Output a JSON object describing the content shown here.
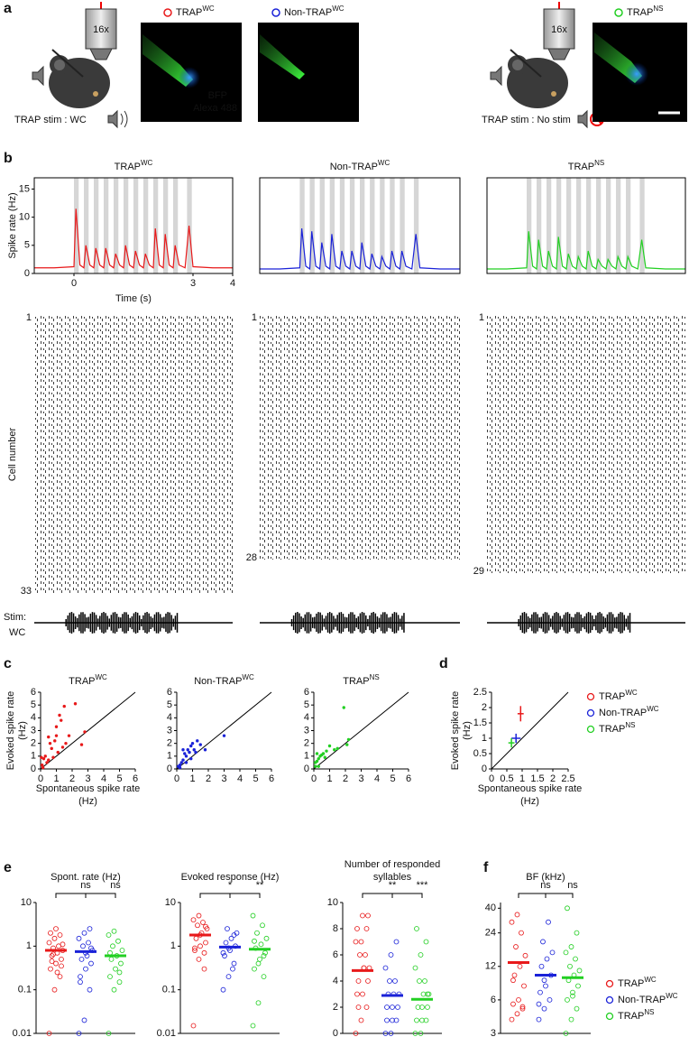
{
  "panel_labels": [
    "a",
    "b",
    "c",
    "d",
    "e",
    "f"
  ],
  "panel_a": {
    "objective_labels": [
      "16x",
      "16x"
    ],
    "conditions": [
      "TRAP stim : WC",
      "TRAP stim : No stim"
    ],
    "stain_labels": [
      "BFP",
      "Alexa 488"
    ],
    "images": [
      {
        "name": "TRAP",
        "sup": "WC",
        "color": "#e8191a"
      },
      {
        "name": "Non-TRAP",
        "sup": "WC",
        "color": "#1a22d8"
      },
      {
        "name": "TRAP",
        "sup": "NS",
        "color": "#22cf22"
      }
    ]
  },
  "stim_label": [
    "Stim:",
    "WC"
  ],
  "chart_data": [
    {
      "type": "line",
      "title": "TRAP",
      "title_sup": "WC",
      "xlabel": "Time (s)",
      "ylabel": "Spike rate (Hz)",
      "x": [
        -1,
        -0.5,
        0,
        0.05,
        0.15,
        0.25,
        0.3,
        0.4,
        0.5,
        0.55,
        0.65,
        0.75,
        0.8,
        0.9,
        1.0,
        1.05,
        1.15,
        1.25,
        1.3,
        1.4,
        1.5,
        1.55,
        1.65,
        1.75,
        1.8,
        1.9,
        2.0,
        2.05,
        2.15,
        2.25,
        2.3,
        2.4,
        2.5,
        2.55,
        2.65,
        2.8,
        2.9,
        3.0,
        3.5,
        4
      ],
      "series": [
        {
          "color": "#e8191a",
          "values": [
            1,
            1,
            1.2,
            11.5,
            1.5,
            1,
            5,
            1.5,
            1,
            4.5,
            1.5,
            1,
            4.5,
            1.5,
            1,
            3.5,
            1.5,
            1,
            5,
            1.5,
            1,
            4,
            1.5,
            1,
            3.5,
            1.5,
            1,
            8,
            1.5,
            1,
            7,
            1.5,
            1,
            5,
            1.5,
            1,
            8.5,
            1.2,
            1,
            1
          ]
        }
      ],
      "stim_bands": [
        [
          0,
          0.12
        ],
        [
          0.25,
          0.37
        ],
        [
          0.5,
          0.62
        ],
        [
          0.75,
          0.87
        ],
        [
          1.0,
          1.12
        ],
        [
          1.25,
          1.37
        ],
        [
          1.5,
          1.62
        ],
        [
          1.75,
          1.87
        ],
        [
          2.0,
          2.12
        ],
        [
          2.25,
          2.37
        ],
        [
          2.5,
          2.62
        ],
        [
          2.85,
          2.97
        ]
      ],
      "xlim": [
        -1,
        4
      ],
      "xticks": [
        0,
        3,
        4
      ],
      "ylim": [
        0,
        17
      ],
      "yticks": [
        0,
        5,
        10,
        15
      ]
    },
    {
      "type": "line",
      "title": "Non-TRAP",
      "title_sup": "WC",
      "x": [
        -1,
        -0.5,
        0,
        0.05,
        0.15,
        0.25,
        0.3,
        0.4,
        0.5,
        0.55,
        0.65,
        0.75,
        0.8,
        0.9,
        1.0,
        1.05,
        1.15,
        1.25,
        1.3,
        1.4,
        1.5,
        1.55,
        1.65,
        1.75,
        1.8,
        1.9,
        2.0,
        2.05,
        2.15,
        2.25,
        2.3,
        2.4,
        2.5,
        2.55,
        2.65,
        2.8,
        2.9,
        3.0,
        3.5,
        4
      ],
      "series": [
        {
          "color": "#1a22d8",
          "values": [
            0.8,
            0.8,
            1,
            8,
            1.3,
            0.8,
            7.5,
            1.3,
            0.8,
            5.5,
            1.3,
            0.8,
            7,
            1.3,
            0.8,
            4,
            1.3,
            0.8,
            4,
            1.3,
            0.8,
            5.5,
            1.3,
            0.8,
            3.5,
            1.3,
            0.8,
            3,
            1.3,
            0.8,
            4,
            1.3,
            0.8,
            4,
            1.3,
            0.8,
            7,
            1,
            0.8,
            0.8
          ]
        }
      ],
      "stim_bands": [
        [
          0,
          0.12
        ],
        [
          0.25,
          0.37
        ],
        [
          0.5,
          0.62
        ],
        [
          0.75,
          0.87
        ],
        [
          1.0,
          1.12
        ],
        [
          1.25,
          1.37
        ],
        [
          1.5,
          1.62
        ],
        [
          1.75,
          1.87
        ],
        [
          2.0,
          2.12
        ],
        [
          2.25,
          2.37
        ],
        [
          2.5,
          2.62
        ],
        [
          2.85,
          2.97
        ]
      ],
      "xlim": [
        -1,
        4
      ],
      "ylim": [
        0,
        17
      ]
    },
    {
      "type": "line",
      "title": "TRAP",
      "title_sup": "NS",
      "x": [
        -1,
        -0.5,
        0,
        0.05,
        0.15,
        0.25,
        0.3,
        0.4,
        0.5,
        0.55,
        0.65,
        0.75,
        0.8,
        0.9,
        1.0,
        1.05,
        1.15,
        1.25,
        1.3,
        1.4,
        1.5,
        1.55,
        1.65,
        1.75,
        1.8,
        1.9,
        2.0,
        2.05,
        2.15,
        2.25,
        2.3,
        2.4,
        2.5,
        2.55,
        2.65,
        2.8,
        2.9,
        3.0,
        3.5,
        4
      ],
      "series": [
        {
          "color": "#22cf22",
          "values": [
            0.8,
            0.8,
            1,
            7.5,
            1.3,
            0.8,
            6,
            1.3,
            0.8,
            4,
            1.3,
            0.8,
            6.5,
            1.3,
            0.8,
            3.5,
            1.3,
            0.8,
            3,
            1.3,
            0.8,
            4,
            1.3,
            0.8,
            2.5,
            1.3,
            0.8,
            2.5,
            1.3,
            0.8,
            3,
            1.3,
            0.8,
            3,
            1.3,
            0.8,
            6,
            1,
            0.8,
            0.8
          ]
        }
      ],
      "stim_bands": [
        [
          0,
          0.12
        ],
        [
          0.25,
          0.37
        ],
        [
          0.5,
          0.62
        ],
        [
          0.75,
          0.87
        ],
        [
          1.0,
          1.12
        ],
        [
          1.25,
          1.37
        ],
        [
          1.5,
          1.62
        ],
        [
          1.75,
          1.87
        ],
        [
          2.0,
          2.12
        ],
        [
          2.25,
          2.37
        ],
        [
          2.5,
          2.62
        ],
        [
          2.85,
          2.97
        ]
      ],
      "xlim": [
        -1,
        4
      ],
      "ylim": [
        0,
        17
      ]
    },
    {
      "type": "raster",
      "ylabel": "Cell number",
      "ylim": [
        1,
        33
      ],
      "yticks": [
        1,
        33
      ]
    },
    {
      "type": "raster",
      "ylim": [
        1,
        28
      ],
      "yticks": [
        1,
        28
      ]
    },
    {
      "type": "raster",
      "ylim": [
        1,
        29
      ],
      "yticks": [
        1,
        29
      ]
    },
    {
      "type": "scatter",
      "title": "TRAP",
      "title_sup": "WC",
      "color": "#e8191a",
      "xlabel": [
        "Spontaneous spike rate",
        "(Hz)"
      ],
      "ylabel": [
        "Evoked spike rate",
        "(Hz)"
      ],
      "x": [
        0.1,
        0.2,
        0.3,
        0.4,
        0.5,
        0.6,
        0.8,
        0.9,
        1.0,
        1.1,
        1.2,
        1.3,
        1.4,
        1.5,
        1.6,
        2.2,
        2.8,
        1.8,
        0.7,
        0.15,
        0.05,
        0.5,
        2.6,
        1.0
      ],
      "values": [
        0.3,
        0.8,
        1.0,
        0.5,
        0.7,
        2.0,
        0.9,
        2.2,
        3.3,
        1.3,
        4.2,
        3.8,
        1.7,
        4.9,
        2.0,
        5.1,
        2.9,
        2.6,
        1.6,
        0.1,
        0.9,
        2.5,
        1.9,
        2.6
      ],
      "xlim": [
        0,
        6
      ],
      "ylim": [
        0,
        6
      ],
      "xticks": [
        0,
        1,
        2,
        3,
        4,
        5,
        6
      ],
      "yticks": [
        0,
        1,
        2,
        3,
        4,
        5,
        6
      ]
    },
    {
      "type": "scatter",
      "title": "Non-TRAP",
      "title_sup": "WC",
      "color": "#1a22d8",
      "x": [
        0.1,
        0.2,
        0.3,
        0.4,
        0.5,
        0.6,
        0.7,
        0.8,
        0.9,
        1.0,
        1.1,
        1.3,
        1.5,
        1.8,
        3.0,
        0.4,
        0.2,
        0.6,
        1.2,
        0.9
      ],
      "values": [
        0.2,
        0.3,
        0.5,
        0.7,
        1.2,
        1.0,
        1.5,
        1.3,
        1.8,
        2.0,
        1.5,
        2.2,
        1.9,
        1.5,
        2.6,
        1.5,
        0.1,
        0.5,
        1.3,
        0.8
      ],
      "xlim": [
        0,
        6
      ],
      "ylim": [
        0,
        6
      ],
      "xticks": [
        0,
        1,
        2,
        3,
        4,
        5,
        6
      ],
      "yticks": [
        0,
        1,
        2,
        3,
        4,
        5,
        6
      ]
    },
    {
      "type": "scatter",
      "title": "TRAP",
      "title_sup": "NS",
      "color": "#22cf22",
      "x": [
        0.1,
        0.2,
        0.3,
        0.4,
        0.5,
        0.6,
        0.8,
        1.0,
        1.3,
        1.5,
        1.9,
        2.1,
        2.2,
        0.2,
        0.1,
        0.3,
        0.7
      ],
      "values": [
        0.2,
        0.6,
        0.8,
        1.0,
        1.1,
        1.2,
        1.4,
        1.8,
        1.5,
        1.6,
        4.8,
        1.9,
        2.3,
        1.2,
        0.5,
        0.2,
        0.9
      ],
      "xlim": [
        0,
        6
      ],
      "ylim": [
        0,
        6
      ],
      "xticks": [
        0,
        1,
        2,
        3,
        4,
        5,
        6
      ],
      "yticks": [
        0,
        1,
        2,
        3,
        4,
        5,
        6
      ]
    },
    {
      "type": "errorbar",
      "xlabel": [
        "Spontaneous spike rate",
        "(Hz)"
      ],
      "ylabel": [
        "Evoked spike rate",
        "(Hz)"
      ],
      "series": [
        {
          "name": "TRAP",
          "sup": "WC",
          "color": "#e8191a",
          "x": [
            0.95
          ],
          "xerr": [
            0.1
          ],
          "values": [
            1.8
          ],
          "yerr": [
            0.25
          ]
        },
        {
          "name": "Non-TRAP",
          "sup": "WC",
          "color": "#1a22d8",
          "x": [
            0.8
          ],
          "xerr": [
            0.15
          ],
          "values": [
            1.0
          ],
          "yerr": [
            0.15
          ]
        },
        {
          "name": "TRAP",
          "sup": "NS",
          "color": "#22cf22",
          "x": [
            0.65
          ],
          "xerr": [
            0.1
          ],
          "values": [
            0.85
          ],
          "yerr": [
            0.15
          ]
        }
      ],
      "xlim": [
        0,
        2.5
      ],
      "ylim": [
        0,
        2.5
      ],
      "xticks": [
        0,
        0.5,
        1,
        1.5,
        2,
        2.5
      ],
      "yticks": [
        0,
        0.5,
        1,
        1.5,
        2,
        2.5
      ],
      "legend": "right"
    },
    {
      "type": "strip",
      "title": "Spont. rate (Hz)",
      "log": true,
      "ylim": [
        0.01,
        10
      ],
      "yticks": [
        0.01,
        0.1,
        1,
        10
      ],
      "annotations": [
        "ns",
        "ns"
      ],
      "series": [
        {
          "color": "#e8191a",
          "center": 0.8,
          "values": [
            0.01,
            0.1,
            0.2,
            0.3,
            0.4,
            0.5,
            0.6,
            0.7,
            0.8,
            0.9,
            1,
            1.2,
            1.5,
            1.8,
            2,
            2.5,
            0.35,
            0.45,
            0.25,
            1.1,
            0.65
          ]
        },
        {
          "color": "#1a22d8",
          "center": 0.75,
          "values": [
            0.01,
            0.02,
            0.1,
            0.2,
            0.3,
            0.4,
            0.5,
            0.6,
            0.8,
            1,
            1.2,
            1.5,
            2,
            2.5,
            0.15,
            0.7,
            0.9
          ]
        },
        {
          "color": "#22cf22",
          "center": 0.6,
          "values": [
            0.01,
            0.1,
            0.15,
            0.2,
            0.3,
            0.4,
            0.5,
            0.6,
            0.8,
            1,
            1.3,
            1.8,
            2.2,
            0.25,
            0.7
          ]
        }
      ]
    },
    {
      "type": "strip",
      "title": "Evoked response (Hz)",
      "log": true,
      "ylim": [
        0.01,
        10
      ],
      "yticks": [
        0.01,
        0.1,
        1,
        10
      ],
      "annotations": [
        "*",
        "**"
      ],
      "series": [
        {
          "color": "#e8191a",
          "center": 1.8,
          "values": [
            0.015,
            0.5,
            0.7,
            0.9,
            1,
            1.2,
            1.5,
            2,
            2.5,
            3,
            3.5,
            4,
            5,
            0.3,
            0.8,
            1.8,
            2.8
          ]
        },
        {
          "color": "#1a22d8",
          "center": 0.95,
          "values": [
            0.1,
            0.2,
            0.4,
            0.6,
            0.8,
            1,
            1.2,
            1.5,
            2,
            2.5,
            0.3,
            0.7,
            0.9,
            1.8
          ]
        },
        {
          "color": "#22cf22",
          "center": 0.85,
          "values": [
            0.015,
            0.05,
            0.2,
            0.3,
            0.5,
            0.7,
            0.9,
            1.1,
            1.5,
            2,
            3,
            5,
            0.4,
            0.6,
            1.3
          ]
        }
      ]
    },
    {
      "type": "strip",
      "title": [
        "Number of responded",
        "syllables"
      ],
      "ylim": [
        0,
        10
      ],
      "yticks": [
        0,
        2,
        4,
        6,
        8,
        10
      ],
      "annotations": [
        "**",
        "***"
      ],
      "series": [
        {
          "color": "#e8191a",
          "center": 4.8,
          "values": [
            0,
            1,
            2,
            3,
            3,
            4,
            4,
            5,
            5,
            6,
            6,
            7,
            7,
            8,
            8,
            9,
            9,
            2,
            5
          ]
        },
        {
          "color": "#1a22d8",
          "center": 2.9,
          "values": [
            0,
            0,
            1,
            1,
            2,
            2,
            3,
            3,
            3,
            4,
            4,
            5,
            6,
            7,
            2,
            1
          ]
        },
        {
          "color": "#22cf22",
          "center": 2.6,
          "values": [
            0,
            0,
            1,
            1,
            2,
            2,
            2,
            3,
            3,
            4,
            4,
            5,
            6,
            7,
            8,
            1,
            3
          ]
        }
      ]
    },
    {
      "type": "strip",
      "title": "BF (kHz)",
      "log": true,
      "ylim": [
        3,
        45
      ],
      "yticks": [
        3,
        6,
        12,
        24,
        40
      ],
      "annotations": [
        "ns",
        "ns"
      ],
      "legend": "right",
      "series": [
        {
          "name": "TRAP",
          "sup": "WC",
          "color": "#e8191a",
          "center": 13,
          "values": [
            4,
            4.5,
            5,
            5.5,
            6,
            8,
            10,
            12,
            15,
            18,
            24,
            30,
            35,
            5.2,
            9
          ]
        },
        {
          "name": "Non-TRAP",
          "sup": "WC",
          "color": "#1a22d8",
          "center": 10,
          "values": [
            4,
            5,
            6,
            7,
            8,
            10,
            12,
            14,
            16,
            20,
            30,
            5.5,
            9
          ]
        },
        {
          "name": "TRAP",
          "sup": "NS",
          "color": "#22cf22",
          "center": 9.5,
          "values": [
            3,
            4,
            5,
            6,
            7,
            8,
            9,
            10,
            11,
            12,
            14,
            16,
            18,
            24,
            40,
            6.5
          ]
        }
      ]
    }
  ]
}
